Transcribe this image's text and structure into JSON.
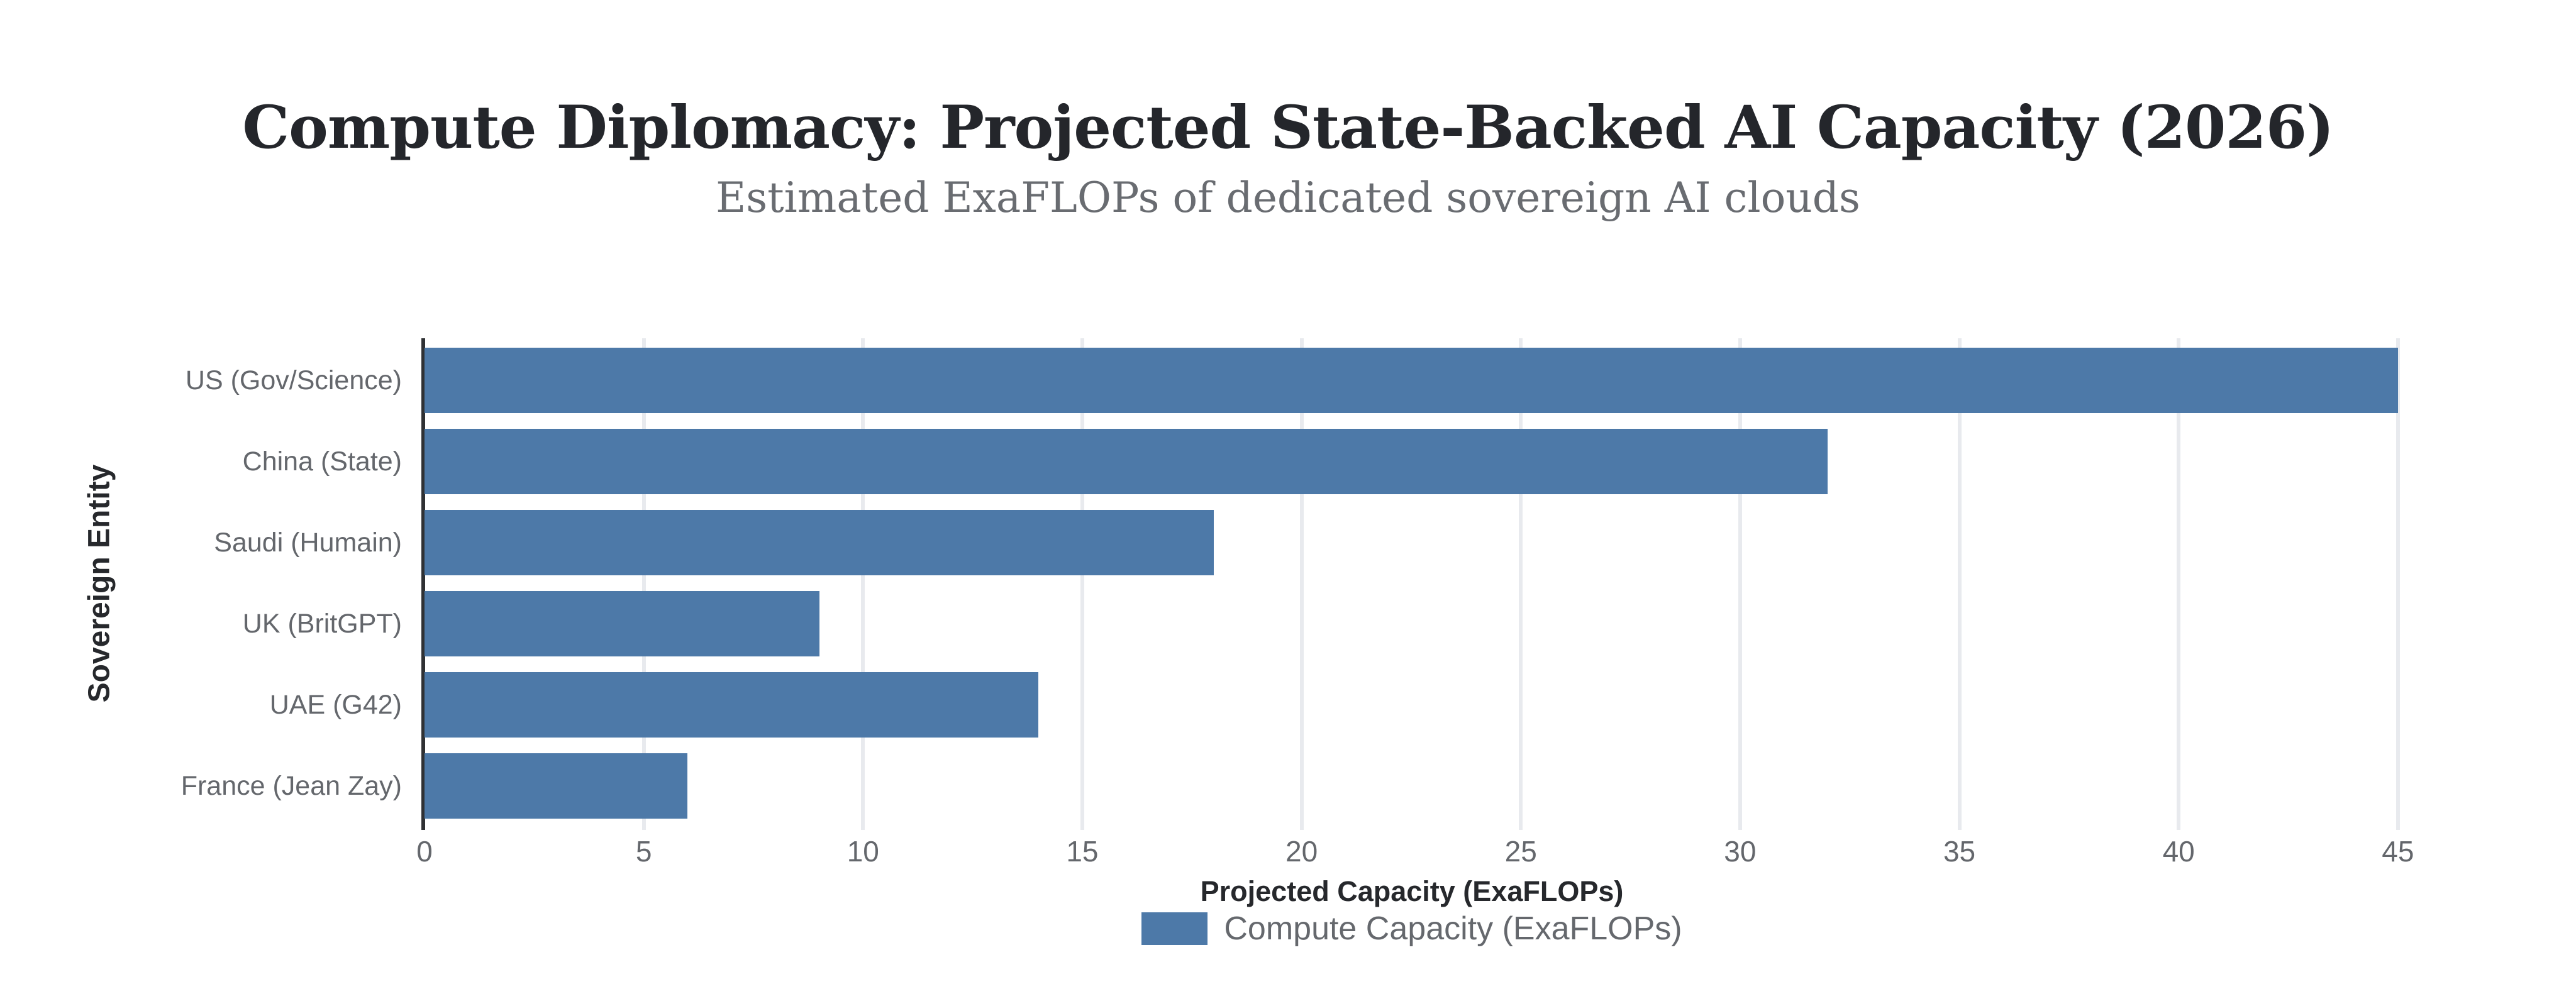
{
  "chart_data": {
    "type": "bar",
    "orientation": "horizontal",
    "title": "Compute Diplomacy: Projected State-Backed AI Capacity (2026)",
    "subtitle": "Estimated ExaFLOPs of dedicated sovereign AI clouds",
    "xlabel": "Projected Capacity (ExaFLOPs)",
    "ylabel": "Sovereign Entity",
    "categories": [
      "US (Gov/Science)",
      "China (State)",
      "Saudi (Humain)",
      "UK (BritGPT)",
      "UAE (G42)",
      "France (Jean Zay)"
    ],
    "values": [
      45,
      32,
      18,
      9,
      14,
      6
    ],
    "series": [
      {
        "name": "Compute Capacity (ExaFLOPs)",
        "values": [
          45,
          32,
          18,
          9,
          14,
          6
        ]
      }
    ],
    "legend_position": "bottom",
    "xlim": [
      0,
      45
    ],
    "xticks": [
      0,
      5,
      10,
      15,
      20,
      25,
      30,
      35,
      40,
      45
    ],
    "grid": "vertical",
    "colors": {
      "bar": "#4d79a8",
      "gridline": "#e8eaee",
      "axis_line": "#2f3134",
      "title": "#24262b",
      "subtitle": "#696c71",
      "tick_label": "#64676c",
      "axis_title": "#26282c",
      "legend_text": "#65686d",
      "background": "#ffffff"
    }
  }
}
